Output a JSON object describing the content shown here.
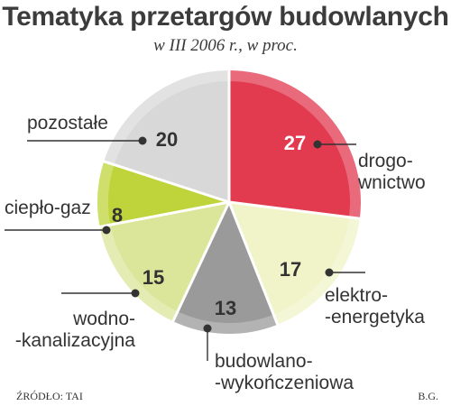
{
  "title": "Tematyka przetargów budowlanych",
  "subtitle": "w III 2006 r., w proc.",
  "source": "ŹRÓDŁO: TAI",
  "author": "B.G.",
  "chart_data": {
    "type": "pie",
    "title": "Tematyka przetargów budowlanych",
    "subtitle": "w III 2006 r., w proc.",
    "slices": [
      {
        "key": "drogownictwo",
        "label_lines": [
          "drogo-",
          "wnictwo"
        ],
        "value": 27,
        "color": "#e23a4f"
      },
      {
        "key": "elektroenergetyka",
        "label_lines": [
          "elektro-",
          "-energetyka"
        ],
        "value": 17,
        "color": "#f0f4c8"
      },
      {
        "key": "budowlano-wykonczeniowa",
        "label_lines": [
          "budowlano-",
          "-wykończeniowa"
        ],
        "value": 13,
        "color": "#9a9a9a"
      },
      {
        "key": "wodno-kanalizacyjna",
        "label_lines": [
          "wodno-",
          "-kanalizacyjna"
        ],
        "value": 15,
        "color": "#dbe69a"
      },
      {
        "key": "cieplo-gaz",
        "label_lines": [
          "ciepło-gaz"
        ],
        "value": 8,
        "color": "#bfd43a"
      },
      {
        "key": "pozostale",
        "label_lines": [
          "pozostałe"
        ],
        "value": 20,
        "color": "#d8d8d8"
      }
    ],
    "unit": "%"
  }
}
